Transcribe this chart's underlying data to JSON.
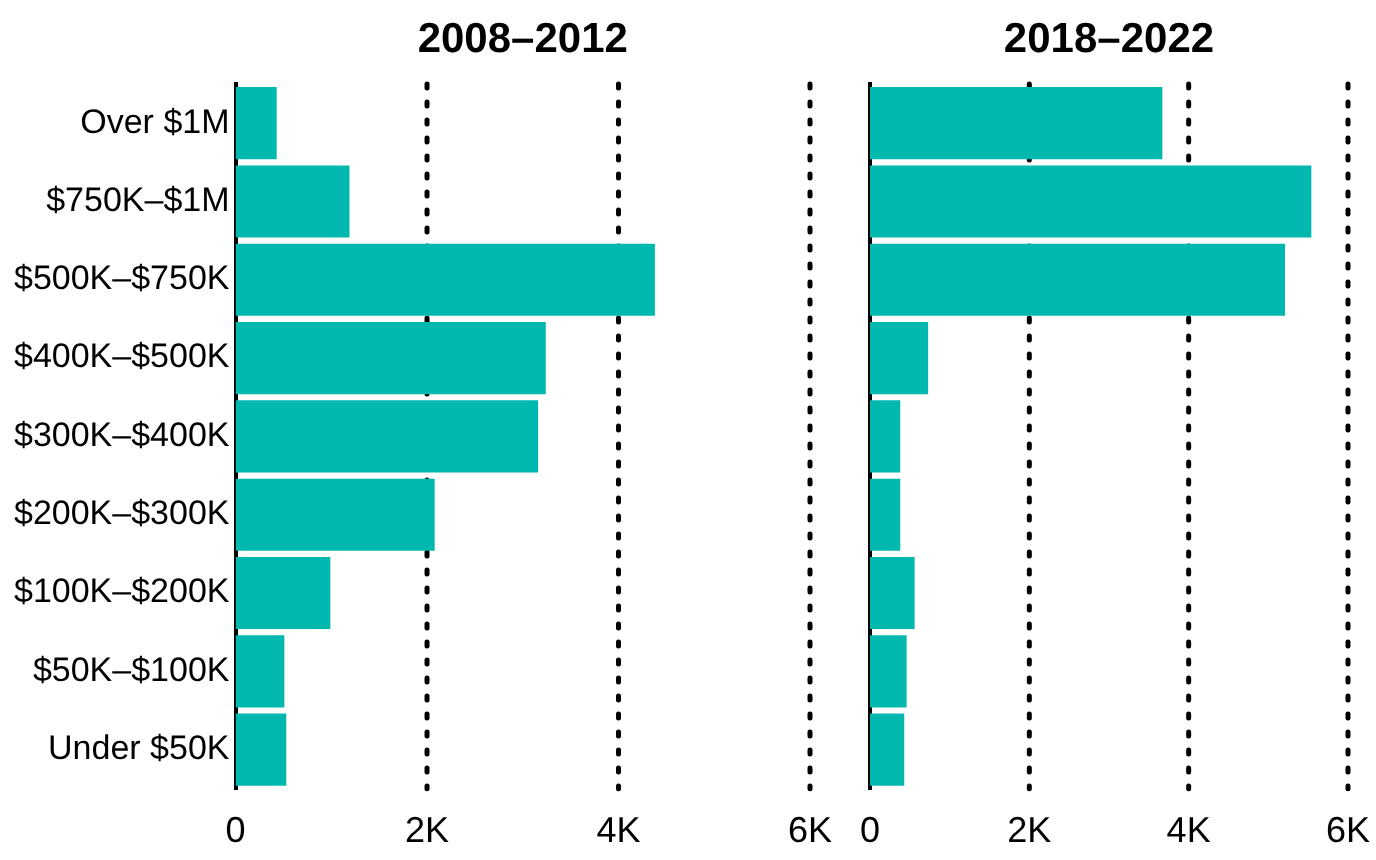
{
  "chart_data": [
    {
      "type": "bar",
      "orientation": "horizontal",
      "title": "2008–2012",
      "categories": [
        "Over $1M",
        "$750K–$1M",
        "$500K–$750K",
        "$400K–$500K",
        "$300K–$400K",
        "$200K–$300K",
        "$100K–$200K",
        "$50K–$100K",
        "Under $50K"
      ],
      "values": [
        430,
        1190,
        4380,
        3240,
        3160,
        2080,
        990,
        510,
        530
      ],
      "color": "#00b8ad",
      "xlim": [
        0,
        6000
      ],
      "xticks": [
        0,
        {
          "value": 2000,
          "label": "2K"
        },
        {
          "value": 4000,
          "label": "4K"
        },
        {
          "value": 6000,
          "label": "6K"
        }
      ],
      "grid": "x"
    },
    {
      "type": "bar",
      "orientation": "horizontal",
      "title": "2018–2022",
      "categories": [
        null,
        null,
        null,
        null,
        null,
        null,
        null,
        null,
        null
      ],
      "values": [
        3670,
        5540,
        5210,
        730,
        380,
        380,
        560,
        460,
        430
      ],
      "color": "#00b8ad",
      "xlim": [
        0,
        6000
      ],
      "xticks": [
        0,
        {
          "value": 2000,
          "label": "2K"
        },
        {
          "value": 4000,
          "label": "4K"
        },
        {
          "value": 6000,
          "label": "6K"
        }
      ],
      "grid": "x",
      "tick_labels": "x"
    }
  ]
}
